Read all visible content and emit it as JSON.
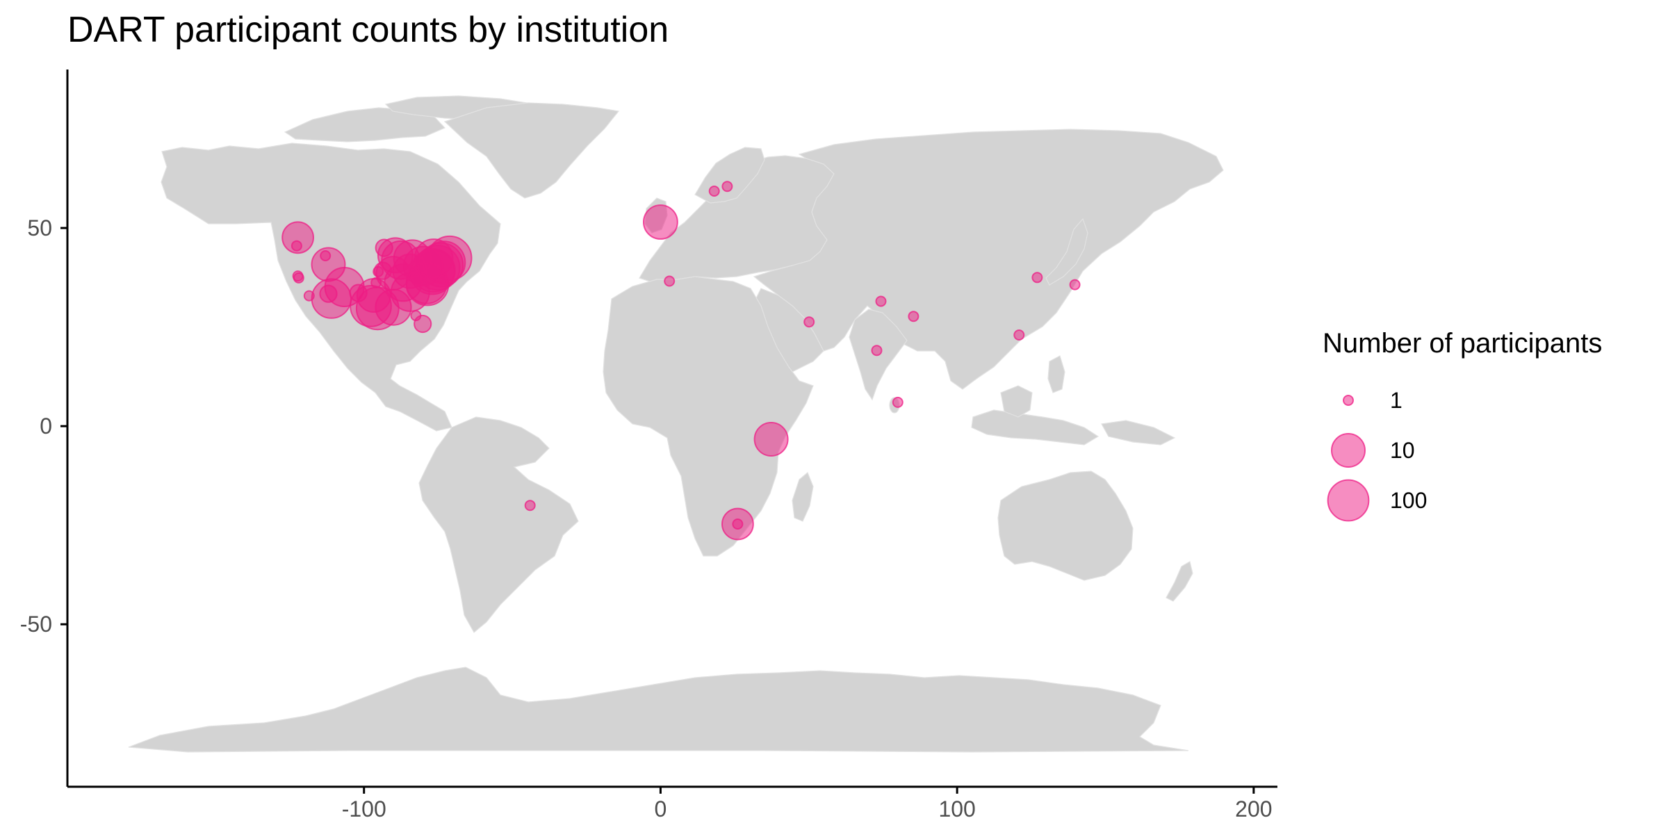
{
  "title": "DART participant counts by institution",
  "colors": {
    "land": "#d3d3d3",
    "point": "#ee1c84",
    "axis": "#000000",
    "tick_text": "#4d4d4d"
  },
  "legend": {
    "title": "Number of participants",
    "entries": [
      {
        "label": "1",
        "value": 1
      },
      {
        "label": "10",
        "value": 10
      },
      {
        "label": "100",
        "value": 100
      }
    ]
  },
  "chart_data": {
    "type": "scatter",
    "kind": "bubble map (world, equirectangular longitude/latitude)",
    "xlim": [
      -200,
      208
    ],
    "ylim": [
      -91,
      90
    ],
    "x_ticks": [
      {
        "value": -100,
        "label": "-100"
      },
      {
        "value": 0,
        "label": "0"
      },
      {
        "value": 100,
        "label": "100"
      },
      {
        "value": 200,
        "label": "200"
      }
    ],
    "y_ticks": [
      {
        "value": 50,
        "label": "50"
      },
      {
        "value": 0,
        "label": "0"
      },
      {
        "value": -50,
        "label": "-50"
      }
    ],
    "grid": false,
    "legend_position": "right",
    "size_variable": "Number of participants",
    "points": [
      {
        "lon": -122.3,
        "lat": 47.6,
        "n": 8
      },
      {
        "lon": -122.7,
        "lat": 45.5,
        "n": 1
      },
      {
        "lon": -122.3,
        "lat": 37.9,
        "n": 1
      },
      {
        "lon": -122.0,
        "lat": 37.4,
        "n": 1
      },
      {
        "lon": -118.5,
        "lat": 32.9,
        "n": 1
      },
      {
        "lon": -113.0,
        "lat": 43.0,
        "n": 1
      },
      {
        "lon": -112.0,
        "lat": 40.8,
        "n": 10
      },
      {
        "lon": -112.0,
        "lat": 33.4,
        "n": 2
      },
      {
        "lon": -111.0,
        "lat": 32.2,
        "n": 60
      },
      {
        "lon": -106.6,
        "lat": 35.1,
        "n": 55
      },
      {
        "lon": -101.9,
        "lat": 33.6,
        "n": 2
      },
      {
        "lon": -97.7,
        "lat": 30.3,
        "n": 100
      },
      {
        "lon": -95.4,
        "lat": 29.7,
        "n": 150
      },
      {
        "lon": -96.7,
        "lat": 33.0,
        "n": 10
      },
      {
        "lon": -95.9,
        "lat": 36.2,
        "n": 1
      },
      {
        "lon": -95.2,
        "lat": 39.0,
        "n": 1
      },
      {
        "lon": -93.2,
        "lat": 45.0,
        "n": 2
      },
      {
        "lon": -93.6,
        "lat": 39.2,
        "n": 2
      },
      {
        "lon": -90.2,
        "lat": 38.6,
        "n": 10
      },
      {
        "lon": -89.4,
        "lat": 43.1,
        "n": 15
      },
      {
        "lon": -90.1,
        "lat": 30.0,
        "n": 20
      },
      {
        "lon": -87.6,
        "lat": 41.9,
        "n": 40
      },
      {
        "lon": -86.8,
        "lat": 36.2,
        "n": 30
      },
      {
        "lon": -84.4,
        "lat": 33.8,
        "n": 45
      },
      {
        "lon": -83.7,
        "lat": 42.3,
        "n": 30
      },
      {
        "lon": -84.5,
        "lat": 39.1,
        "n": 12
      },
      {
        "lon": -82.5,
        "lat": 27.9,
        "n": 1
      },
      {
        "lon": -80.2,
        "lat": 25.8,
        "n": 2
      },
      {
        "lon": -80.0,
        "lat": 40.4,
        "n": 60
      },
      {
        "lon": -78.9,
        "lat": 36.0,
        "n": 80
      },
      {
        "lon": -78.6,
        "lat": 35.8,
        "n": 150
      },
      {
        "lon": -77.0,
        "lat": 38.9,
        "n": 300
      },
      {
        "lon": -76.6,
        "lat": 39.3,
        "n": 200
      },
      {
        "lon": -75.2,
        "lat": 40.0,
        "n": 300
      },
      {
        "lon": -74.0,
        "lat": 40.7,
        "n": 250
      },
      {
        "lon": -73.0,
        "lat": 41.3,
        "n": 150
      },
      {
        "lon": -71.1,
        "lat": 42.4,
        "n": 250
      },
      {
        "lon": -76.5,
        "lat": 42.4,
        "n": 40
      },
      {
        "lon": 0.0,
        "lat": 51.5,
        "n": 12
      },
      {
        "lon": 3.0,
        "lat": 36.6,
        "n": 1
      },
      {
        "lon": 18.1,
        "lat": 59.3,
        "n": 1
      },
      {
        "lon": 22.5,
        "lat": 60.5,
        "n": 1
      },
      {
        "lon": 50.1,
        "lat": 26.3,
        "n": 1
      },
      {
        "lon": 74.3,
        "lat": 31.5,
        "n": 1
      },
      {
        "lon": 72.9,
        "lat": 19.1,
        "n": 1
      },
      {
        "lon": 85.3,
        "lat": 27.7,
        "n": 1
      },
      {
        "lon": 80.0,
        "lat": 6.0,
        "n": 1
      },
      {
        "lon": 120.9,
        "lat": 23.0,
        "n": 1
      },
      {
        "lon": 127.0,
        "lat": 37.5,
        "n": 1
      },
      {
        "lon": 139.7,
        "lat": 35.7,
        "n": 1
      },
      {
        "lon": 37.3,
        "lat": -3.3,
        "n": 10
      },
      {
        "lon": 26.0,
        "lat": -24.7,
        "n": 8
      },
      {
        "lon": 26.0,
        "lat": -24.7,
        "n": 1
      },
      {
        "lon": -44.0,
        "lat": -20.0,
        "n": 1
      }
    ]
  }
}
